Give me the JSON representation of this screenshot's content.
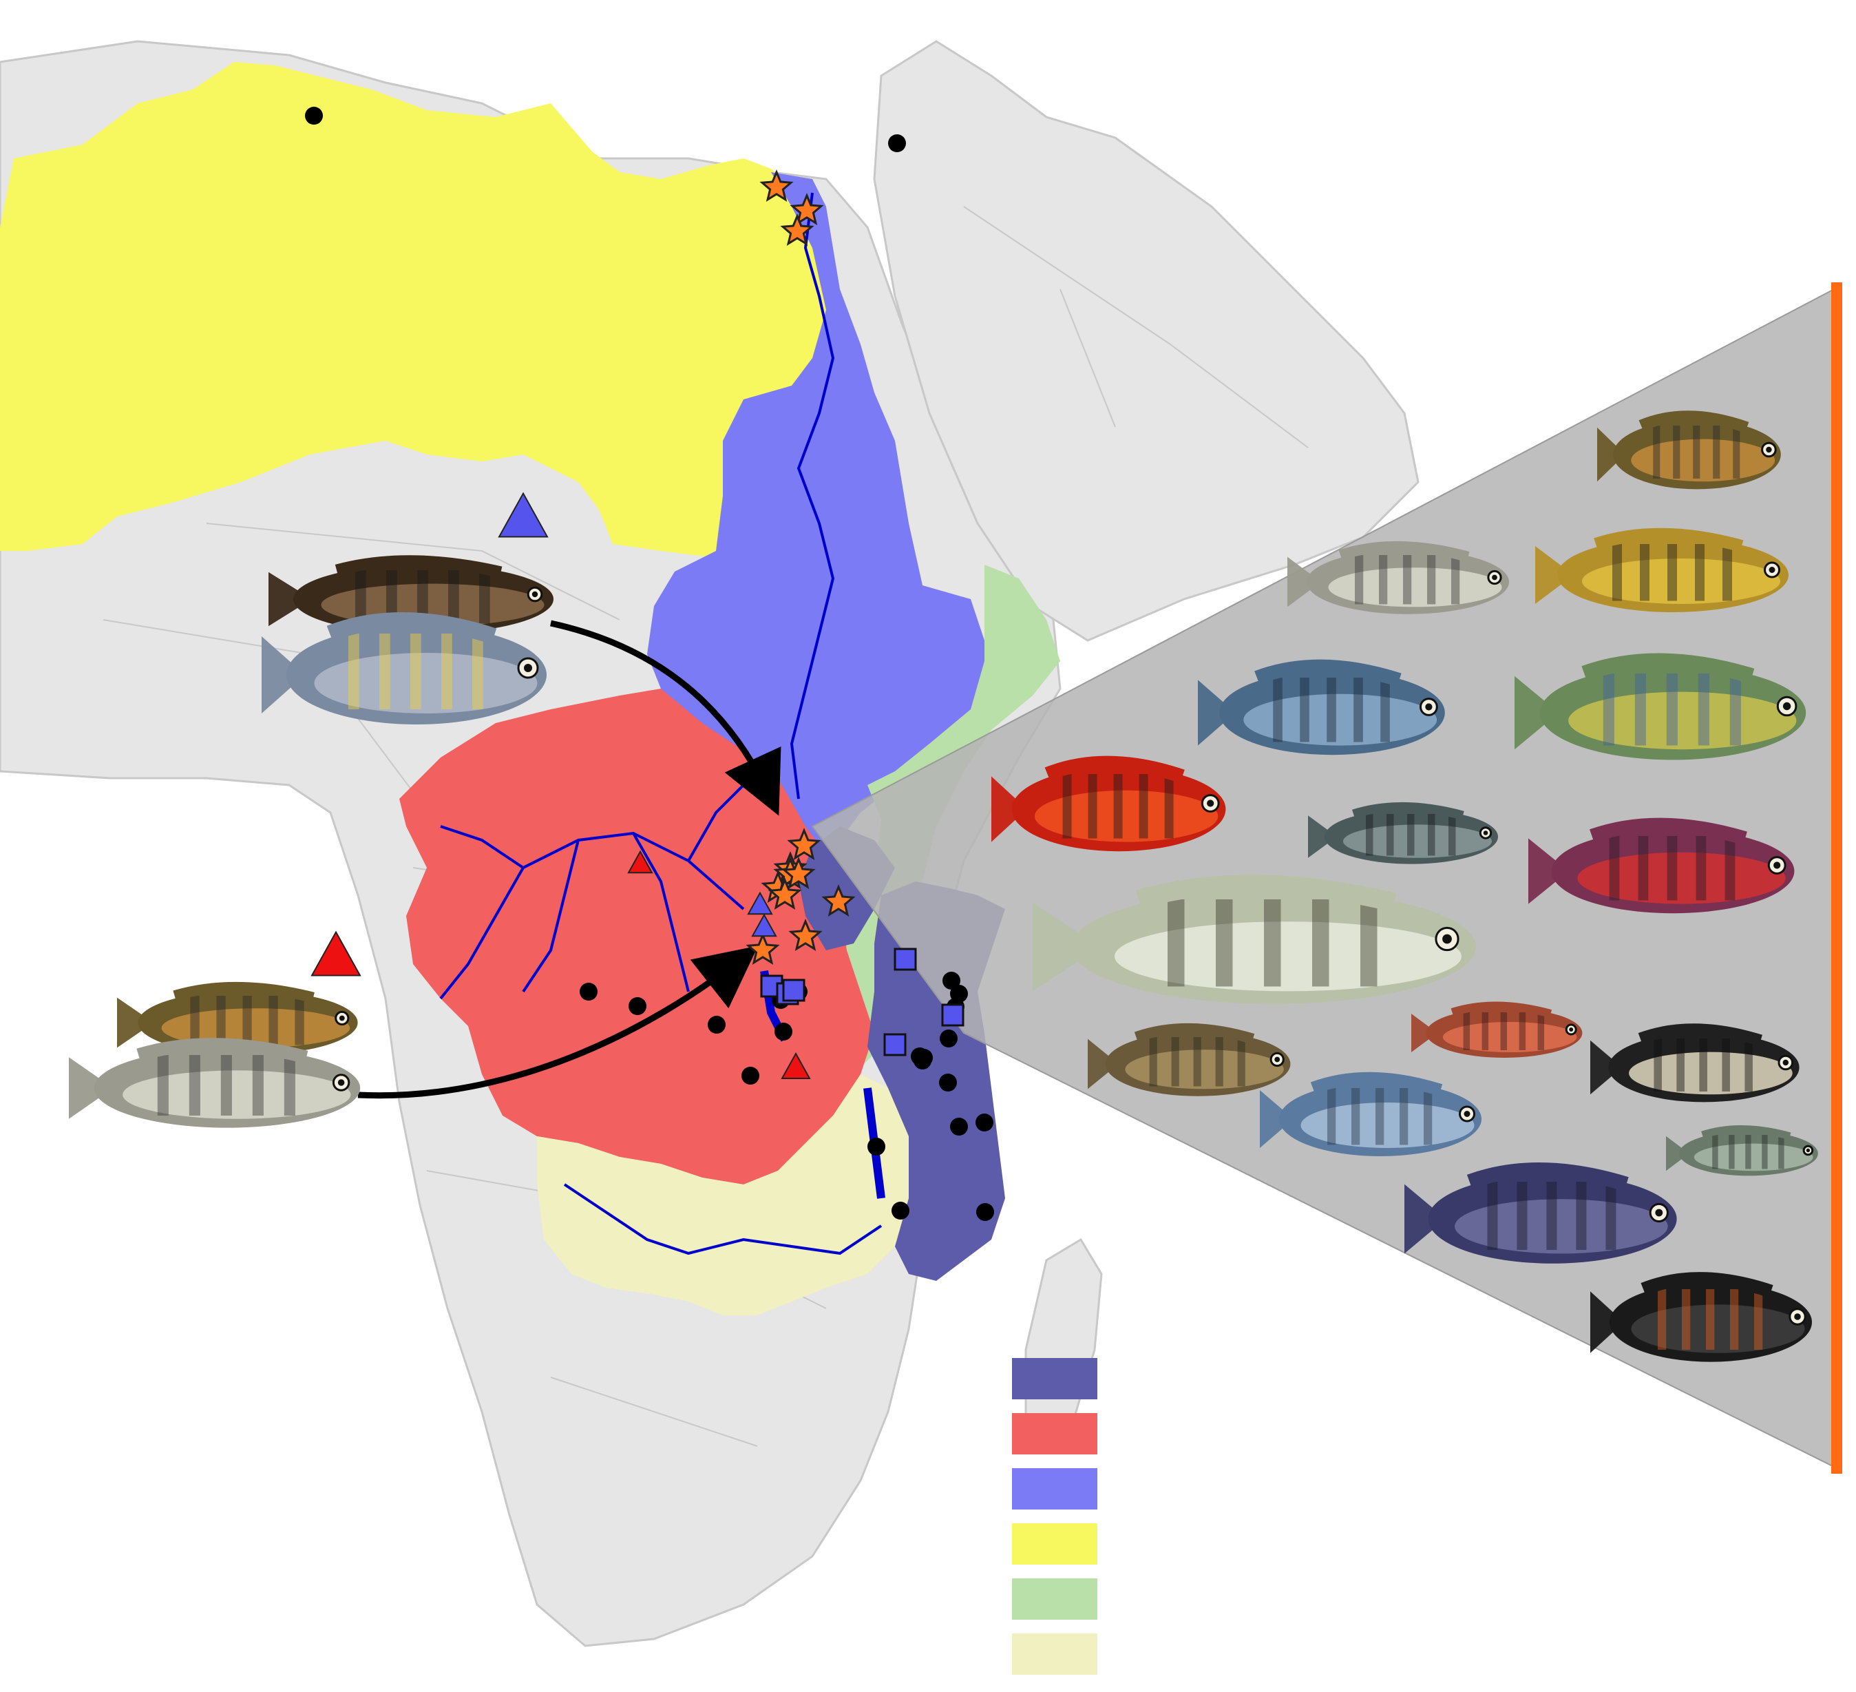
{
  "colors": {
    "background": "#ffffff",
    "land": "#e6e6e6",
    "border_line": "#c8c8c8",
    "nile_basin": "#7b7bf5",
    "congo_basin": "#f26060",
    "sahara_region": "#f7f760",
    "rift_valley": "#b9e0a8",
    "zambezi_basin": "#f0f0c0",
    "lake_malawi_basin": "#5c5cab",
    "rivers": "#0000cc",
    "callout_panel": "#b4b4b4",
    "panel_bar": "#ff6a13",
    "star_fill": "#ff7a20",
    "marker_black": "#000000",
    "triangle_blue": "#5555ee",
    "triangle_red": "#ee1111",
    "arrow": "#000000"
  },
  "legend": {
    "swatches": [
      {
        "name": "lake-malawi-basin-swatch",
        "color": "#5c5cab",
        "label": ""
      },
      {
        "name": "congo-basin-swatch",
        "color": "#f26060",
        "label": ""
      },
      {
        "name": "nile-basin-swatch",
        "color": "#7b7bf5",
        "label": ""
      },
      {
        "name": "sahara-region-swatch",
        "color": "#f7f760",
        "label": ""
      },
      {
        "name": "rift-valley-swatch",
        "color": "#b9e0a8",
        "label": ""
      },
      {
        "name": "zambezi-basin-swatch",
        "color": "#f0f0c0",
        "label": ""
      }
    ]
  },
  "markers": {
    "orange_star_count": 12,
    "black_dot_count": 22,
    "blue_square_count": 6,
    "blue_triangle_count": 3,
    "red_triangle_count": 3,
    "migration_arrow_count": 2
  },
  "photo_panel": {
    "fish_photo_count": 17
  }
}
